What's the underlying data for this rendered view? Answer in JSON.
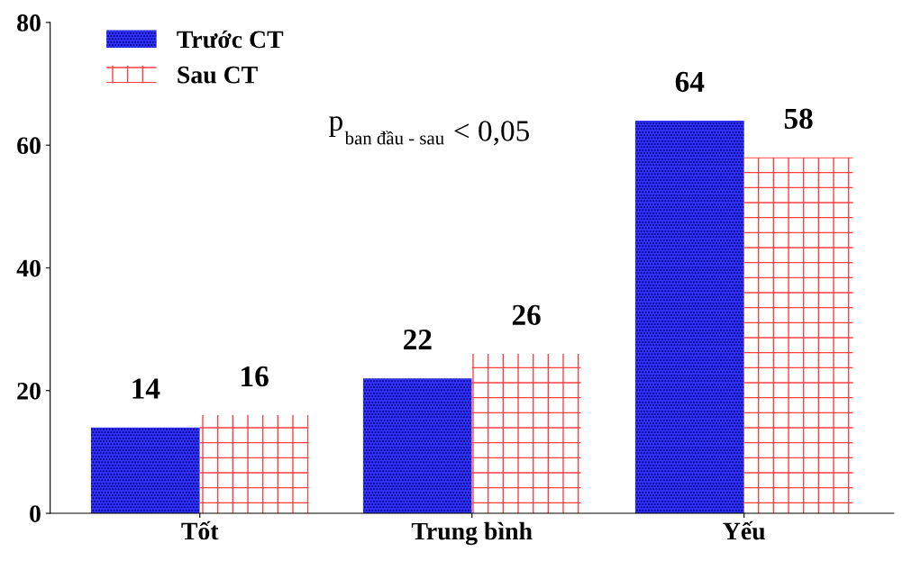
{
  "chart_data": {
    "type": "bar",
    "categories": [
      "Tốt",
      "Trung bình",
      "Yếu"
    ],
    "series": [
      {
        "name": "Trước CT",
        "color": "#3333ff",
        "values": [
          14,
          22,
          64
        ]
      },
      {
        "name": "Sau CT",
        "color": "#ffffff",
        "values": [
          16,
          26,
          58
        ]
      }
    ],
    "ylim": [
      0,
      80
    ],
    "yticks": [
      0,
      20,
      40,
      60,
      80
    ],
    "grid": false,
    "legend": "top left",
    "data_labels": true,
    "annotations": [
      "p$_{ban đầu - sau}$ < 0,05"
    ]
  }
}
